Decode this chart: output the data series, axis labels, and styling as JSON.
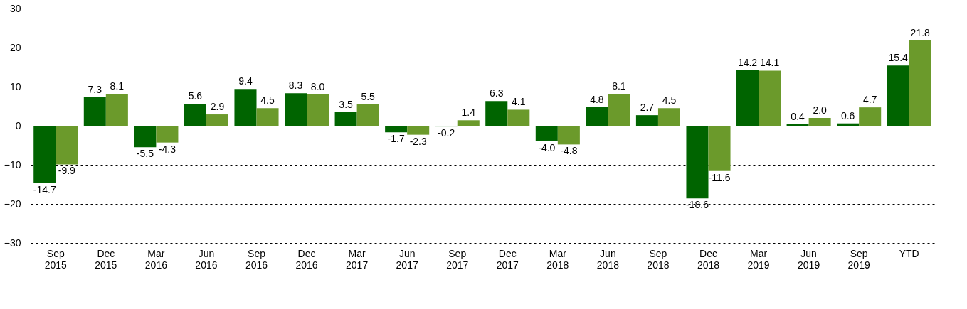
{
  "chart_data": {
    "type": "bar",
    "categories": [
      "Sep 2015",
      "Dec 2015",
      "Mar 2016",
      "Jun 2016",
      "Sep 2016",
      "Dec 2016",
      "Mar 2017",
      "Jun 2017",
      "Sep 2017",
      "Dec 2017",
      "Mar 2018",
      "Jun 2018",
      "Sep 2018",
      "Dec 2018",
      "Mar 2019",
      "Jun 2019",
      "Sep 2019",
      "YTD"
    ],
    "series": [
      {
        "color": "#006400",
        "values": [
          -14.7,
          7.3,
          -5.5,
          5.6,
          9.4,
          8.3,
          3.5,
          -1.7,
          -0.2,
          6.3,
          -4,
          4.8,
          2.7,
          -18.6,
          14.2,
          0.4,
          0.6,
          15.4
        ],
        "value_labels": [
          "-14.7",
          "7.3",
          "-5.5",
          "5.6",
          "9.4",
          "8.3",
          "3.5",
          "-1.7",
          "-0.2",
          "6.3",
          "-4.0",
          "4.8",
          "2.7",
          "-18.6",
          "14.2",
          "0.4",
          "0.6",
          "15.4"
        ]
      },
      {
        "color": "#6b9a2b",
        "values": [
          -9.9,
          8.1,
          -4.3,
          2.9,
          4.5,
          8,
          5.5,
          -2.3,
          1.4,
          4.1,
          -4.8,
          8.1,
          4.5,
          -11.6,
          14.1,
          2,
          4.7,
          21.8
        ],
        "value_labels": [
          "-9.9",
          "8.1",
          "-4.3",
          "2.9",
          "4.5",
          "8.0",
          "5.5",
          "-2.3",
          "1.4",
          "4.1",
          "-4.8",
          "8.1",
          "4.5",
          "-11.6",
          "14.1",
          "2.0",
          "4.7",
          "21.8"
        ]
      }
    ],
    "ylim": [
      -30,
      30
    ],
    "yticks": [
      -30,
      -20,
      -10,
      0,
      10,
      20,
      30
    ],
    "grid": "y"
  }
}
